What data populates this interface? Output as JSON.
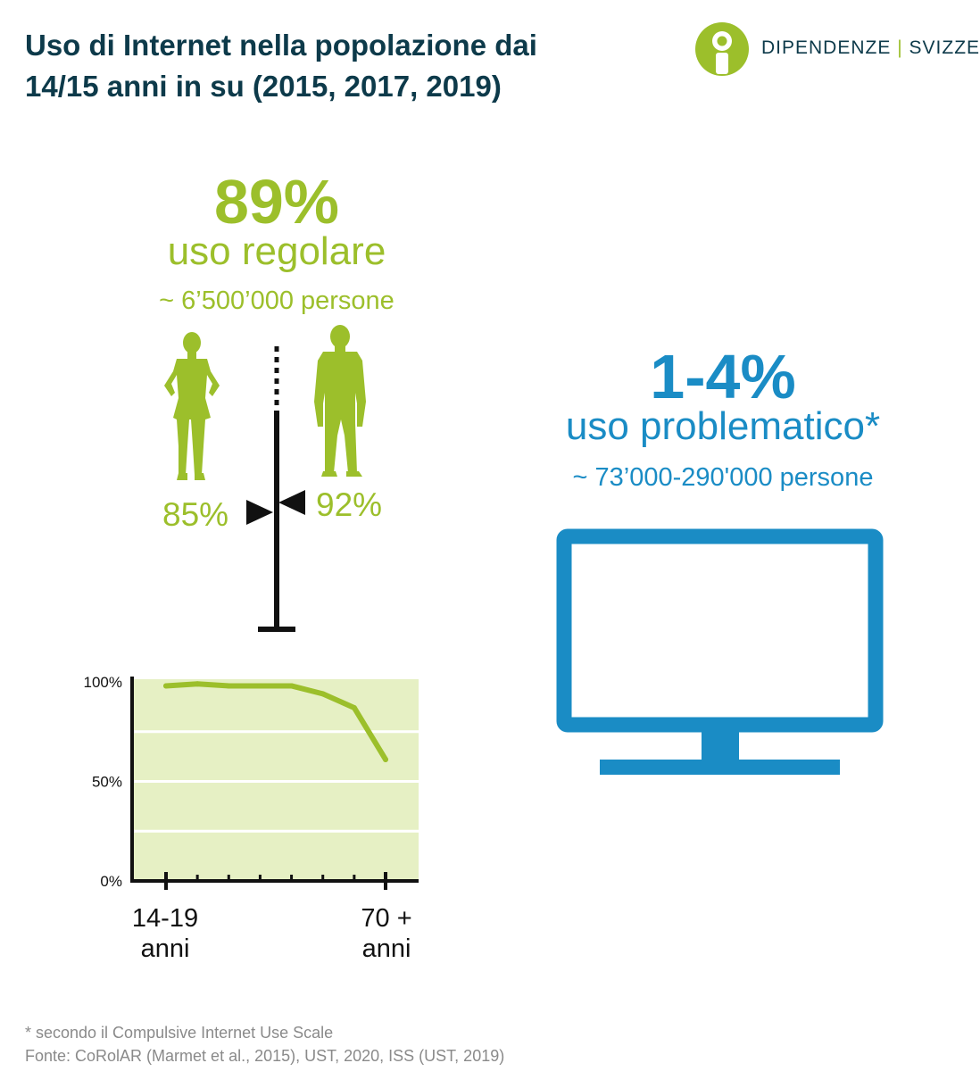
{
  "header": {
    "title_line1": "Uso di Internet nella popolazione dai",
    "title_line2": "14/15 anni in su (2015, 2017, 2019)"
  },
  "logo": {
    "brand_left": "DIPENDENZE",
    "separator": "|",
    "brand_right": "SVIZZERA",
    "icon": "info-person-icon"
  },
  "regular_use": {
    "percent": "89%",
    "label": "uso regolare",
    "persons": "~ 6’500’000 persone",
    "female_percent": "85%",
    "male_percent": "92%",
    "female_value": 85,
    "male_value": 92,
    "color": "#9cbf2b"
  },
  "problematic_use": {
    "percent": "1-4%",
    "label": "uso problematico*",
    "persons": "~ 73’000-290'000 persone",
    "icon": "monitor-icon",
    "color": "#1a8cc5"
  },
  "chart_data": {
    "type": "line",
    "y_tick_labels": [
      "100%",
      "50%",
      "0%"
    ],
    "ylim": [
      0,
      100
    ],
    "x_end_labels": [
      "14-19\nanni",
      "70 +\nanni"
    ],
    "categories": [
      "14-19",
      "",
      "",
      "",
      "",
      "",
      "",
      "70 +"
    ],
    "values": [
      98,
      99,
      98,
      98,
      98,
      94,
      87,
      61
    ],
    "line_color": "#9cbf2b",
    "plot_background": "#e6f0c4",
    "grid": true
  },
  "footnote": {
    "line1": "* secondo il Compulsive Internet Use Scale",
    "line2": "Fonte: CoRolAR (Marmet et al., 2015), UST, 2020, ISS (UST, 2019)"
  }
}
